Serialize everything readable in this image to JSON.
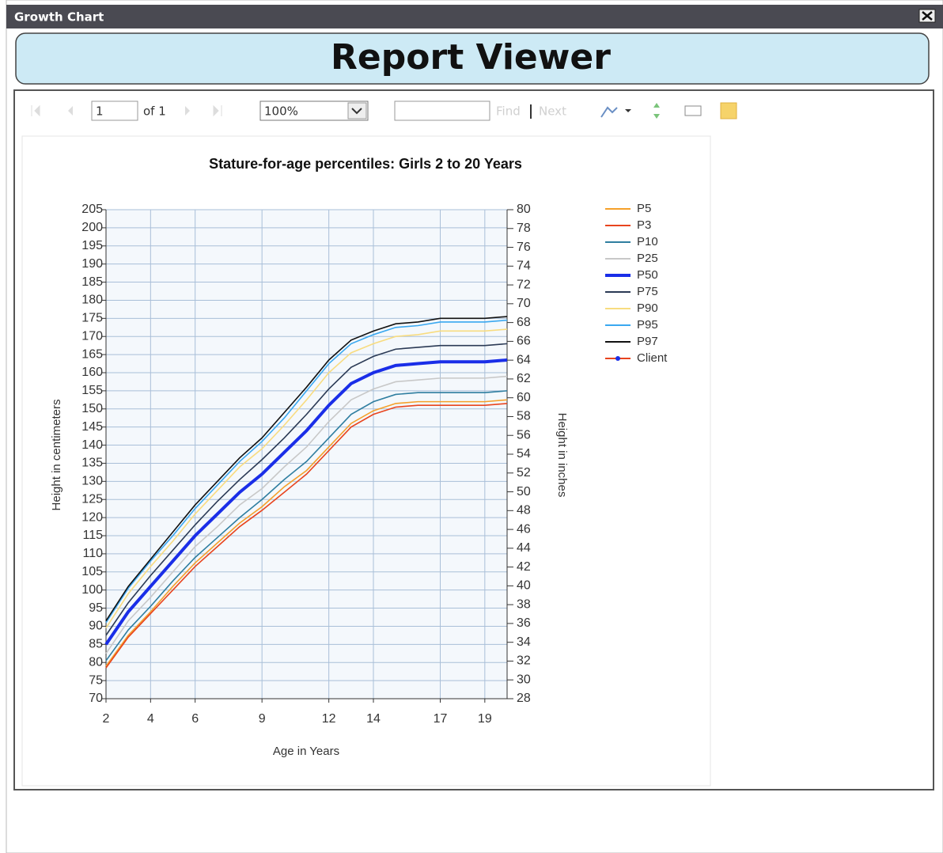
{
  "window": {
    "title": "Growth Chart"
  },
  "header": {
    "title": "Report Viewer"
  },
  "toolbar": {
    "page": "1",
    "of_pages": "of 1",
    "zoom": "100%",
    "find": "Find",
    "next": "Next"
  },
  "chart_data": {
    "type": "line",
    "title": "Stature-for-age percentiles: Girls 2 to 20 Years",
    "x_label": "Age in Years",
    "y_label": "Height in centimeters",
    "y2_label": "Height in inches",
    "x": [
      2,
      3,
      4,
      5,
      6,
      7,
      8,
      9,
      10,
      11,
      12,
      13,
      14,
      15,
      16,
      17,
      18,
      19,
      20
    ],
    "xlim": [
      2,
      20
    ],
    "xticks": [
      2,
      4,
      6,
      9,
      12,
      14,
      17,
      19
    ],
    "ylim": [
      70,
      205
    ],
    "yticks": [
      70,
      75,
      80,
      85,
      90,
      95,
      100,
      105,
      110,
      115,
      120,
      125,
      130,
      135,
      140,
      145,
      150,
      155,
      160,
      165,
      170,
      175,
      180,
      185,
      190,
      195,
      200,
      205
    ],
    "y2lim": [
      28,
      80
    ],
    "y2ticks": [
      28,
      30,
      32,
      34,
      36,
      38,
      40,
      42,
      44,
      46,
      48,
      50,
      52,
      54,
      56,
      58,
      60,
      62,
      64,
      66,
      68,
      70,
      72,
      74,
      76,
      78,
      80
    ],
    "grid": true,
    "legend": "right",
    "series": [
      {
        "name": "P5",
        "color": "#f5a02a",
        "values": [
          79,
          87.5,
          94,
          101,
          107.5,
          113,
          118.5,
          123,
          128.5,
          133,
          139.5,
          146,
          149.5,
          151.5,
          152,
          152,
          152,
          152,
          152.5
        ]
      },
      {
        "name": "P3",
        "color": "#e8441e",
        "values": [
          78.5,
          87,
          93.5,
          100,
          106.5,
          112,
          117.5,
          122,
          127,
          132,
          138.5,
          145,
          148.5,
          150.5,
          151,
          151,
          151,
          151,
          151.5
        ]
      },
      {
        "name": "P10",
        "color": "#2f7ea0",
        "values": [
          80.5,
          89,
          95.5,
          102.5,
          109,
          114.5,
          120,
          125,
          130.5,
          135.5,
          142,
          148.5,
          152,
          154,
          154.5,
          154.5,
          154.5,
          154.5,
          155
        ]
      },
      {
        "name": "P25",
        "color": "#c8c8c8",
        "values": [
          82.5,
          91.5,
          98,
          105,
          112,
          117.5,
          123.5,
          128,
          134,
          139.5,
          146.5,
          152.5,
          155.5,
          157.5,
          158,
          158.5,
          158.5,
          158.5,
          159
        ]
      },
      {
        "name": "P50",
        "color": "#1a2ee8",
        "values": [
          85,
          94,
          101,
          108,
          115,
          121,
          127,
          132,
          138,
          144,
          151,
          157,
          160,
          162,
          162.5,
          163,
          163,
          163,
          163.5
        ]
      },
      {
        "name": "P75",
        "color": "#2b3a55",
        "values": [
          87.5,
          96.5,
          104,
          111,
          118,
          124.5,
          130.5,
          136,
          142,
          148.5,
          155.5,
          161.5,
          164.5,
          166.5,
          167,
          167.5,
          167.5,
          167.5,
          168
        ]
      },
      {
        "name": "P90",
        "color": "#f8dc80",
        "values": [
          89.5,
          99,
          106.5,
          113.5,
          121,
          127.5,
          134,
          139,
          145.5,
          152.5,
          160,
          165.5,
          168,
          170,
          170.5,
          171.5,
          171.5,
          171.5,
          172
        ]
      },
      {
        "name": "P95",
        "color": "#3aa8f0",
        "values": [
          91,
          100.5,
          108,
          115,
          122.5,
          129,
          135.5,
          141,
          147.5,
          155,
          162.5,
          168,
          170.5,
          172.5,
          173,
          174,
          174,
          174,
          174.5
        ]
      },
      {
        "name": "P97",
        "color": "#111111",
        "values": [
          91.5,
          101,
          108.5,
          116,
          123.5,
          130,
          136.5,
          142,
          149,
          156,
          163.5,
          169,
          171.5,
          173.5,
          174,
          175,
          175,
          175,
          175.5
        ]
      },
      {
        "name": "Client",
        "color": "#e8441e",
        "values": [
          null,
          null,
          null,
          null,
          null,
          null,
          null,
          null,
          null,
          null,
          null,
          null,
          null,
          null,
          null,
          null,
          null,
          null,
          null
        ]
      }
    ]
  }
}
